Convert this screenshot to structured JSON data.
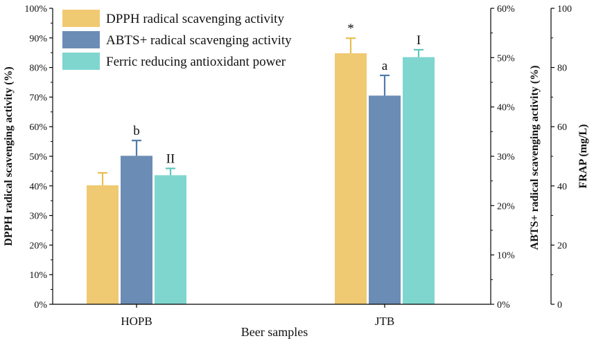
{
  "chart_data": {
    "type": "bar",
    "categories": [
      "HOPB",
      "JTB"
    ],
    "xlabel": "Beer samples",
    "series": [
      {
        "name": "DPPH radical scavenging activity",
        "axis": "left",
        "color": "#F0CA72",
        "error_color": "#E8BE4E",
        "values": [
          40.2,
          84.8
        ],
        "errors": [
          4.2,
          5.1
        ],
        "annotations": [
          "",
          "*"
        ]
      },
      {
        "name": "ABTS+ radical scavenging activity",
        "axis": "right1",
        "color": "#6B8DB5",
        "error_color": "#4F7BAA",
        "values": [
          30.1,
          42.3
        ],
        "errors": [
          3.1,
          4.1
        ],
        "annotations": [
          "b",
          "a"
        ]
      },
      {
        "name": "Ferric reducing antioxidant power",
        "axis": "right2",
        "color": "#7FD6CF",
        "error_color": "#5EC6BE",
        "values": [
          43.6,
          83.5
        ],
        "errors": [
          2.3,
          2.5
        ],
        "annotations": [
          "II",
          "I"
        ]
      }
    ],
    "axes": {
      "left": {
        "label": "DPPH radical scavenging activity (%)",
        "min": 0,
        "max": 100,
        "step": 10,
        "tick_labels": [
          "0%",
          "10%",
          "20%",
          "30%",
          "40%",
          "50%",
          "60%",
          "70%",
          "80%",
          "90%",
          "100%"
        ]
      },
      "right1": {
        "label": "ABTS+ radical scavenging activity (%)",
        "min": 0,
        "max": 60,
        "step": 10,
        "tick_labels": [
          "0%",
          "10%",
          "20%",
          "30%",
          "40%",
          "50%",
          "60%"
        ]
      },
      "right2": {
        "label": "FRAP (mg/L)",
        "min": 0,
        "max": 100,
        "step": 20,
        "tick_labels": [
          "0",
          "20",
          "40",
          "60",
          "80",
          "100"
        ]
      }
    },
    "legend_position": "top-left"
  }
}
